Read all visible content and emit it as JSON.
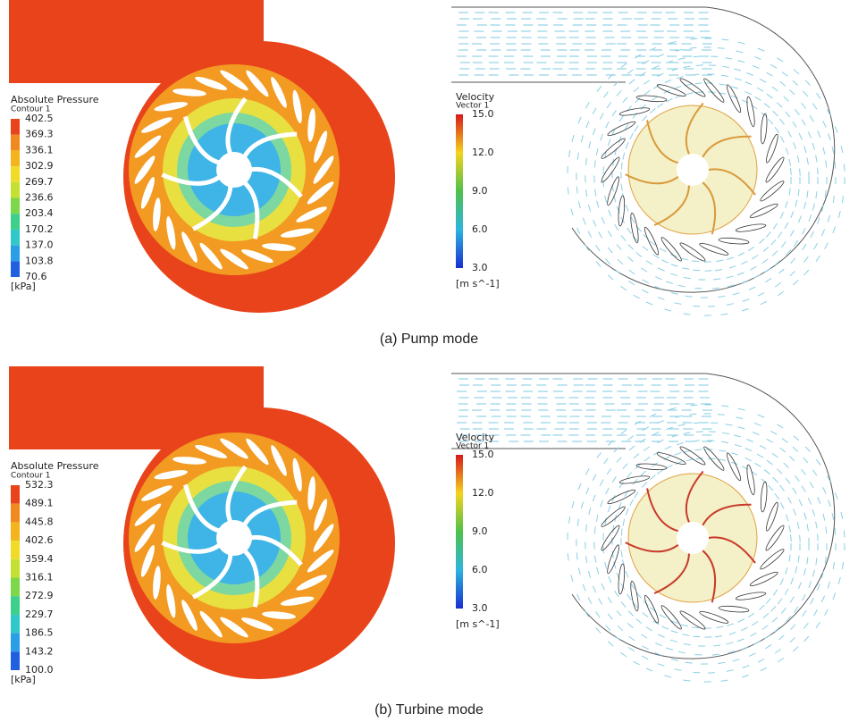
{
  "panels": [
    {
      "caption": "(a) Pump mode",
      "pressure": {
        "title": "Absolute Pressure",
        "subtitle": "Contour 1",
        "levels": [
          "402.5",
          "369.3",
          "336.1",
          "302.9",
          "269.7",
          "236.6",
          "203.4",
          "170.2",
          "137.0",
          "103.8",
          "70.6"
        ],
        "unit": "[kPa]"
      },
      "velocity": {
        "title": "Velocity",
        "subtitle": "Vector 1",
        "levels": [
          "15.0",
          "12.0",
          "9.0",
          "6.0",
          "3.0"
        ],
        "unit": "[m s^-1]"
      }
    },
    {
      "caption": "(b) Turbine mode",
      "pressure": {
        "title": "Absolute Pressure",
        "subtitle": "Contour 1",
        "levels": [
          "532.3",
          "489.1",
          "445.8",
          "402.6",
          "359.4",
          "316.1",
          "272.9",
          "229.7",
          "186.5",
          "143.2",
          "100.0"
        ],
        "unit": "[kPa]"
      },
      "velocity": {
        "title": "Velocity",
        "subtitle": "Vector 1",
        "levels": [
          "15.0",
          "12.0",
          "9.0",
          "6.0",
          "3.0"
        ],
        "unit": "[m s^-1]"
      }
    }
  ]
}
